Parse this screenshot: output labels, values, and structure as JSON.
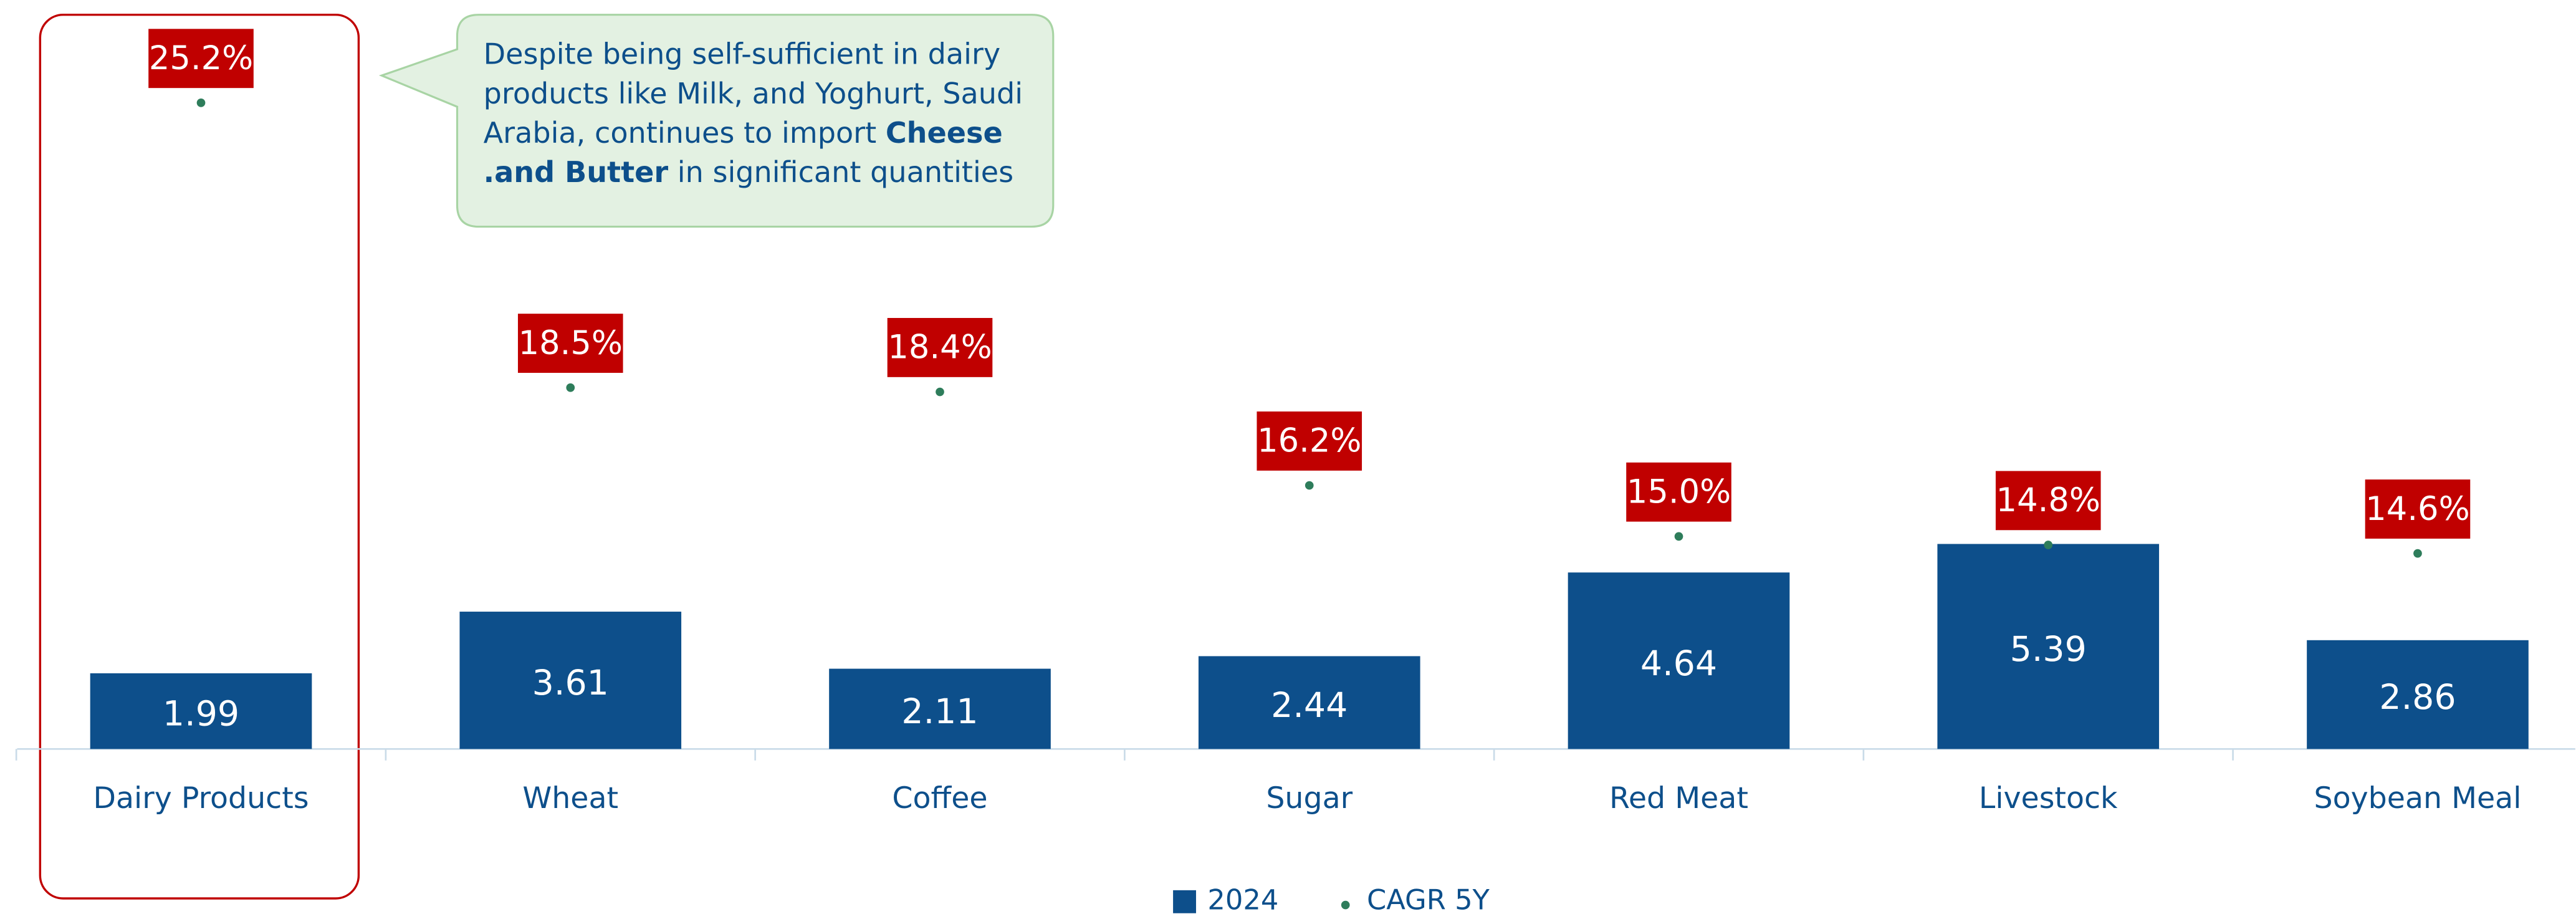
{
  "chart_data": {
    "type": "bar",
    "categories": [
      "Dairy Products",
      "Wheat",
      "Coffee",
      "Sugar",
      "Red Meat",
      "Livestock",
      "Soybean Meal"
    ],
    "series": [
      {
        "name": "2024",
        "color": "#0d4f8b",
        "values": [
          1.99,
          3.61,
          2.11,
          2.44,
          4.64,
          5.39,
          2.86
        ]
      },
      {
        "name": "CAGR 5Y",
        "color": "#2e7d5b",
        "axis": "y2",
        "label_color": "#c00000",
        "values": [
          25.2,
          18.5,
          18.4,
          16.2,
          15.0,
          14.8,
          14.6
        ],
        "value_labels": [
          "25.2%",
          "18.5%",
          "18.4%",
          "16.2%",
          "15.0%",
          "14.8%",
          "14.6%"
        ]
      }
    ],
    "ylim": [
      0,
      19
    ],
    "y2lim": [
      10,
      27
    ],
    "highlight_category": 0,
    "annotation": {
      "lines": [
        [
          {
            "text": "Despite being self-sufficient in dairy",
            "bold": false
          }
        ],
        [
          {
            "text": "products like Milk, and Yoghurt, Saudi",
            "bold": false
          }
        ],
        [
          {
            "text": "Arabia, continues to import ",
            "bold": false
          },
          {
            "text": "Cheese",
            "bold": true
          }
        ],
        [
          {
            "text": ".and Butter",
            "bold": true
          },
          {
            "text": " in significant quantities",
            "bold": false
          }
        ]
      ]
    },
    "legend": "bottom"
  }
}
